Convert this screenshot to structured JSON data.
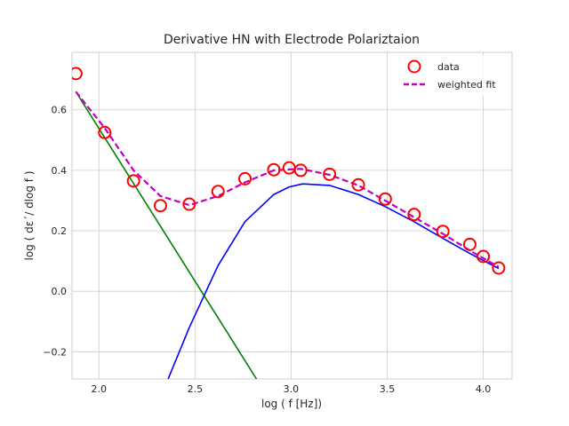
{
  "chart_data": {
    "type": "line",
    "title": "Derivative HN with Electrode Polariztaion",
    "xlabel": "log ( f [Hz])",
    "ylabel": "log ( dε΄/ dlog f )",
    "xlim": [
      1.86,
      4.15
    ],
    "ylim": [
      -0.29,
      0.79
    ],
    "x_ticks": [
      2.0,
      2.5,
      3.0,
      3.5,
      4.0
    ],
    "y_ticks": [
      -0.2,
      0.0,
      0.2,
      0.4,
      0.6
    ],
    "x_tick_labels": [
      "2.0",
      "2.5",
      "3.0",
      "3.5",
      "4.0"
    ],
    "y_tick_labels": [
      "−0.2",
      "0.0",
      "0.2",
      "0.4",
      "0.6"
    ],
    "grid": true,
    "legend_position": "top-right",
    "series": [
      {
        "name": "data",
        "kind": "scatter",
        "color": "#ff0000",
        "marker": "open-circle",
        "x": [
          1.88,
          2.03,
          2.18,
          2.32,
          2.47,
          2.62,
          2.76,
          2.91,
          2.99,
          3.05,
          3.2,
          3.35,
          3.49,
          3.64,
          3.79,
          3.93,
          4.0,
          4.08
        ],
        "y": [
          0.72,
          0.525,
          0.365,
          0.283,
          0.288,
          0.33,
          0.372,
          0.402,
          0.408,
          0.4,
          0.387,
          0.352,
          0.305,
          0.254,
          0.198,
          0.155,
          0.115,
          0.077
        ]
      },
      {
        "name": "weighted fit",
        "kind": "line",
        "style": "dashed",
        "color": "#bf00bf",
        "x": [
          1.88,
          2.03,
          2.18,
          2.32,
          2.47,
          2.62,
          2.76,
          2.91,
          3.05,
          3.2,
          3.35,
          3.49,
          3.64,
          3.79,
          3.93,
          4.08
        ],
        "y": [
          0.66,
          0.54,
          0.4,
          0.315,
          0.285,
          0.315,
          0.36,
          0.4,
          0.405,
          0.385,
          0.35,
          0.3,
          0.245,
          0.19,
          0.135,
          0.08
        ]
      },
      {
        "kind": "line",
        "color": "#0000ff",
        "x": [
          2.36,
          2.47,
          2.62,
          2.76,
          2.91,
          2.99,
          3.06,
          3.2,
          3.35,
          3.49,
          3.64,
          3.79,
          3.93,
          4.08
        ],
        "y": [
          -0.29,
          -0.12,
          0.085,
          0.23,
          0.32,
          0.345,
          0.355,
          0.35,
          0.32,
          0.28,
          0.23,
          0.175,
          0.125,
          0.075
        ]
      },
      {
        "kind": "line",
        "color": "#008000",
        "x": [
          1.88,
          2.82
        ],
        "y": [
          0.66,
          -0.29
        ]
      }
    ]
  }
}
